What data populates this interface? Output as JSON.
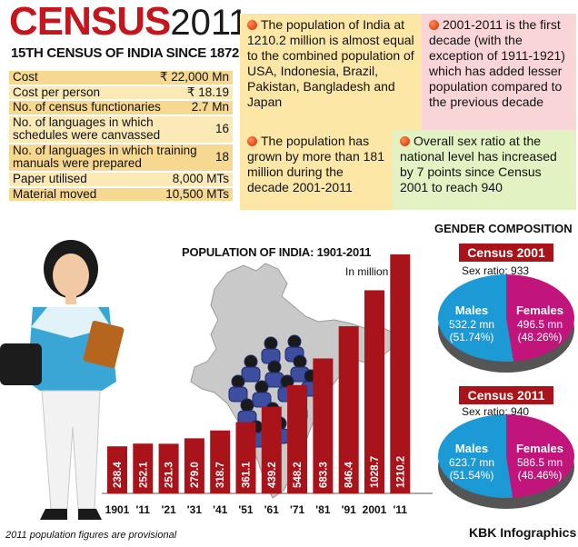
{
  "title": {
    "part1": "CENSUS",
    "part2": "2011"
  },
  "subtitle": "15TH CENSUS OF INDIA SINCE 1872",
  "facts": [
    {
      "label": "Cost",
      "value": "₹ 22,000 Mn"
    },
    {
      "label": "Cost per person",
      "value": "₹ 18.19"
    },
    {
      "label": "No. of census functionaries",
      "value": "2.7 Mn"
    },
    {
      "label": "No. of languages in which schedules were canvassed",
      "value": "16"
    },
    {
      "label": "No. of languages in which training manuals were prepared",
      "value": "18"
    },
    {
      "label": "Paper utilised",
      "value": "8,000 MTs"
    },
    {
      "label": "Material moved",
      "value": "10,500 MTs"
    }
  ],
  "info": {
    "box1": "The population of India at 1210.2 million is almost equal to the combined population of USA, Indonesia, Brazil, Pakistan, Bangladesh and Japan",
    "box2": "2001-2011 is the first decade (with the exception of 1911-1921) which has added lesser population compared to the previous decade",
    "box3": "The population has grown by more than 181 million during the decade 2001-2011",
    "box4": "Overall sex ratio at the national level has increased by 7 points since Census 2001 to reach 940"
  },
  "chart_data": {
    "type": "bar",
    "title": "POPULATION OF INDIA: 1901-2011",
    "unit": "In million",
    "categories": [
      "1901",
      "'11",
      "'21",
      "'31",
      "'41",
      "'51",
      "'61",
      "'71",
      "'81",
      "'91",
      "2001",
      "'11"
    ],
    "values": [
      238.4,
      252.1,
      251.3,
      279.0,
      318.7,
      361.1,
      439.2,
      548.2,
      683.3,
      846.4,
      1028.7,
      1210.2
    ],
    "value_labels": [
      "238.4",
      "252.1",
      "251.3",
      "279.0",
      "318.7",
      "361.1",
      "439.2",
      "548.2",
      "683.3",
      "846.4",
      "1028.7",
      "1210.2"
    ],
    "bar_color": "#a9141a"
  },
  "gender": {
    "title": "GENDER COMPOSITION",
    "census2001": {
      "banner": "Census 2001",
      "ratio": "Sex ratio: 933",
      "males": {
        "label": "Males",
        "value": "532.2 mn",
        "pct": "(51.74%)",
        "share": 51.74
      },
      "females": {
        "label": "Females",
        "value": "496.5 mn",
        "pct": "(48.26%)",
        "share": 48.26
      }
    },
    "census2011": {
      "banner": "Census 2011",
      "ratio": "Sex ratio: 940",
      "males": {
        "label": "Males",
        "value": "623.7 mn",
        "pct": "(51.54%)",
        "share": 51.54
      },
      "females": {
        "label": "Females",
        "value": "586.5 mn",
        "pct": "(48.46%)",
        "share": 48.46
      }
    },
    "male_color": "#1b9ad6",
    "female_color": "#c2157b"
  },
  "footnote": "2011 population figures are provisional",
  "credit": "KBK Infographics"
}
